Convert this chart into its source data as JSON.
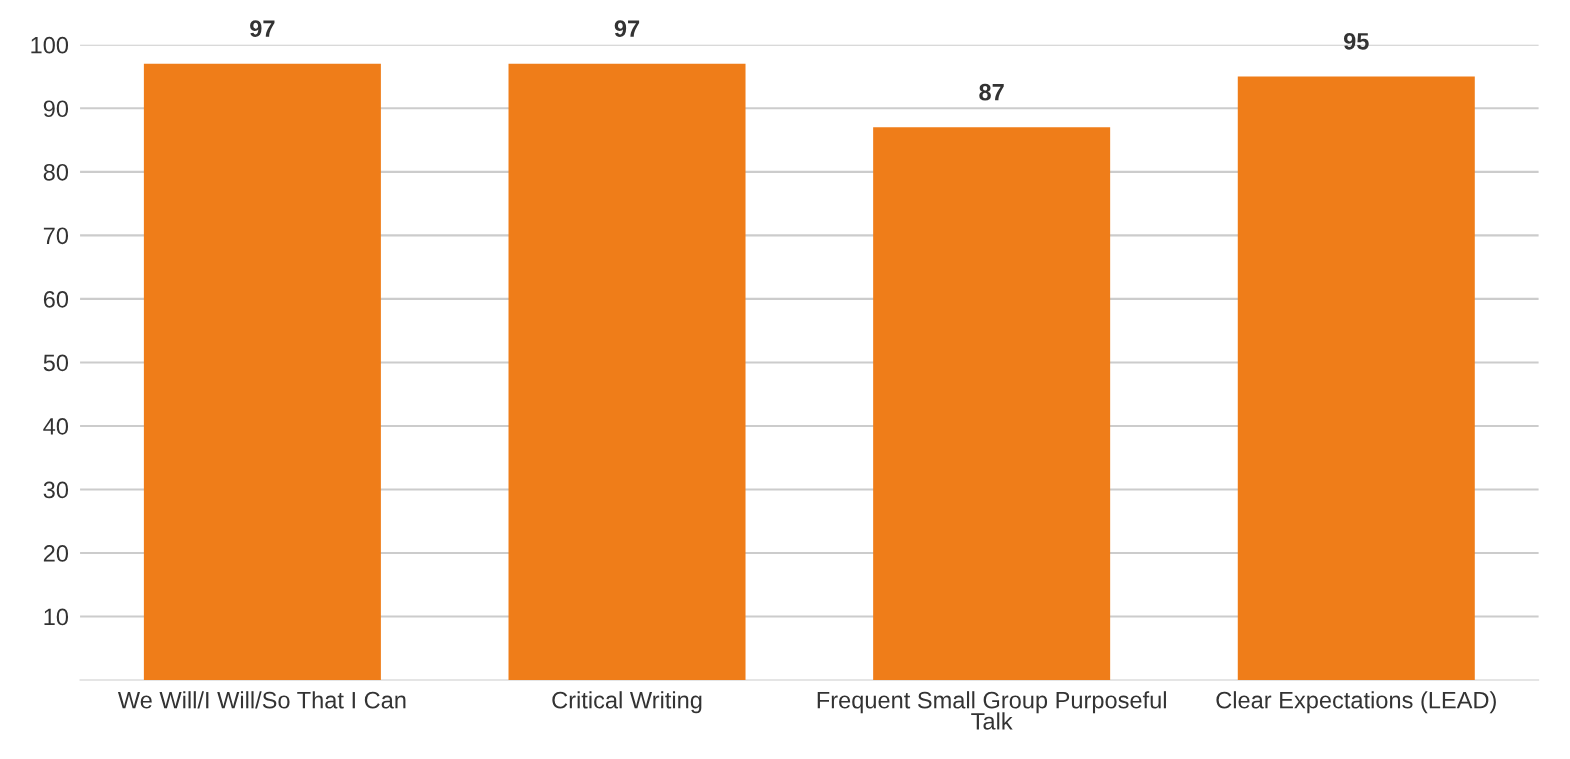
{
  "chart_data": {
    "type": "bar",
    "categories": [
      "We Will/I Will/So That I Can",
      "Critical Writing",
      "Frequent Small Group Purposeful Talk",
      "Clear Expectations (LEAD)"
    ],
    "values": [
      97,
      97,
      87,
      95
    ],
    "color": "#ef7d19",
    "ylim": [
      0,
      100
    ],
    "yticks": [
      10,
      20,
      30,
      40,
      50,
      60,
      70,
      80,
      90,
      100
    ],
    "grid": "y",
    "data_labels": true
  }
}
